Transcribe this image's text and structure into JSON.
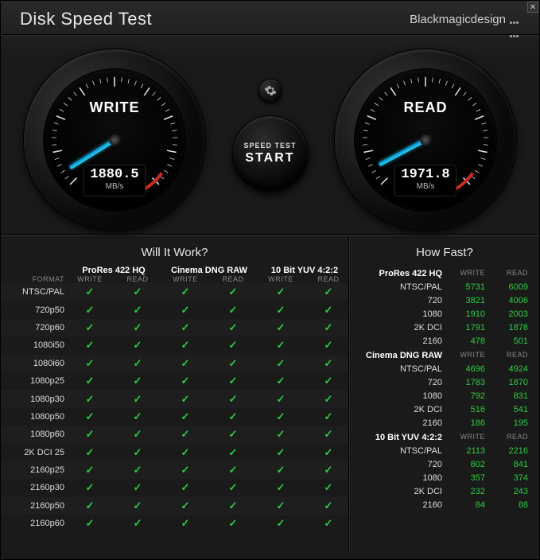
{
  "app": {
    "title": "Disk Speed Test",
    "brand": "Blackmagicdesign"
  },
  "gauges": {
    "write": {
      "label": "WRITE",
      "value": "1880.5",
      "unit": "MB/s",
      "needle_angle": 148
    },
    "read": {
      "label": "READ",
      "value": "1971.8",
      "unit": "MB/s",
      "needle_angle": 152
    }
  },
  "start_button": {
    "line1": "SPEED TEST",
    "line2": "START"
  },
  "colors": {
    "needle": "#2dd6ff",
    "check": "#2ecc40",
    "red_zone": "#cc2a1f",
    "text_primary": "#e8e8e8",
    "text_muted": "#888888",
    "good_value": "#2ecc40"
  },
  "will_it_work": {
    "title": "Will It Work?",
    "format_header": "FORMAT",
    "write_header": "WRITE",
    "read_header": "READ",
    "codecs": [
      "ProRes 422 HQ",
      "Cinema DNG RAW",
      "10 Bit YUV 4:2:2"
    ],
    "formats": [
      "NTSC/PAL",
      "720p50",
      "720p60",
      "1080i50",
      "1080i60",
      "1080p25",
      "1080p30",
      "1080p50",
      "1080p60",
      "2K DCI 25",
      "2160p25",
      "2160p30",
      "2160p50",
      "2160p60"
    ]
  },
  "how_fast": {
    "title": "How Fast?",
    "write_header": "WRITE",
    "read_header": "READ",
    "sections": [
      {
        "codec": "ProRes 422 HQ",
        "rows": [
          {
            "fmt": "NTSC/PAL",
            "write": "5731",
            "read": "6009"
          },
          {
            "fmt": "720",
            "write": "3821",
            "read": "4006"
          },
          {
            "fmt": "1080",
            "write": "1910",
            "read": "2003"
          },
          {
            "fmt": "2K DCI",
            "write": "1791",
            "read": "1878"
          },
          {
            "fmt": "2160",
            "write": "478",
            "read": "501"
          }
        ]
      },
      {
        "codec": "Cinema DNG RAW",
        "rows": [
          {
            "fmt": "NTSC/PAL",
            "write": "4696",
            "read": "4924"
          },
          {
            "fmt": "720",
            "write": "1783",
            "read": "1870"
          },
          {
            "fmt": "1080",
            "write": "792",
            "read": "831"
          },
          {
            "fmt": "2K DCI",
            "write": "516",
            "read": "541"
          },
          {
            "fmt": "2160",
            "write": "186",
            "read": "195"
          }
        ]
      },
      {
        "codec": "10 Bit YUV 4:2:2",
        "rows": [
          {
            "fmt": "NTSC/PAL",
            "write": "2113",
            "read": "2216"
          },
          {
            "fmt": "720",
            "write": "802",
            "read": "841"
          },
          {
            "fmt": "1080",
            "write": "357",
            "read": "374"
          },
          {
            "fmt": "2K DCI",
            "write": "232",
            "read": "243"
          },
          {
            "fmt": "2160",
            "write": "84",
            "read": "88"
          }
        ]
      }
    ]
  }
}
